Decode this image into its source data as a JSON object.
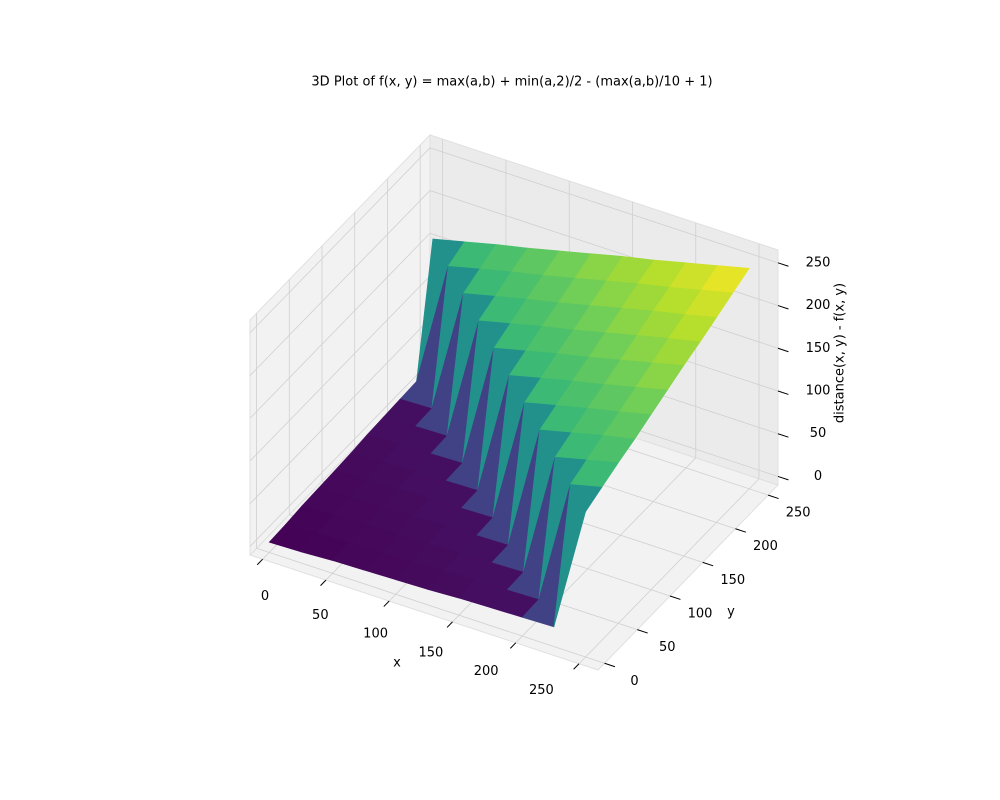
{
  "chart_data": {
    "type": "surface",
    "title": "3D Plot of f(x, y) = max(a,b) + min(a,2)/2 - (max(a,b)/10 + 1)",
    "xlabel": "x",
    "ylabel": "y",
    "zlabel": "distance(x, y) - f(x, y)",
    "x": [
      0,
      25,
      50,
      75,
      100,
      125,
      150,
      175,
      200,
      225,
      250
    ],
    "y": [
      0,
      25,
      50,
      75,
      100,
      125,
      150,
      175,
      200,
      225,
      250
    ],
    "z": [
      [
        2,
        3,
        5,
        6,
        7,
        8,
        10,
        11,
        12,
        13,
        160
      ],
      [
        3,
        5,
        6,
        7,
        8,
        10,
        11,
        12,
        13,
        160,
        169
      ],
      [
        5,
        6,
        7,
        8,
        10,
        11,
        12,
        13,
        160,
        169,
        178
      ],
      [
        6,
        7,
        8,
        10,
        11,
        12,
        13,
        160,
        169,
        178,
        186
      ],
      [
        7,
        8,
        10,
        11,
        12,
        13,
        160,
        169,
        178,
        186,
        195
      ],
      [
        8,
        10,
        11,
        12,
        13,
        160,
        169,
        178,
        186,
        195,
        204
      ],
      [
        10,
        11,
        12,
        13,
        160,
        169,
        178,
        186,
        195,
        204,
        213
      ],
      [
        11,
        12,
        13,
        160,
        169,
        178,
        186,
        195,
        204,
        213,
        221
      ],
      [
        12,
        13,
        160,
        169,
        178,
        186,
        195,
        204,
        213,
        221,
        230
      ],
      [
        13,
        160,
        169,
        178,
        186,
        195,
        204,
        213,
        221,
        230,
        239
      ],
      [
        160,
        169,
        178,
        186,
        195,
        204,
        213,
        221,
        230,
        239,
        248
      ]
    ],
    "cmap": "viridis",
    "xlim": [
      -10,
      265
    ],
    "ylim": [
      -10,
      265
    ],
    "zlim": [
      -10,
      265
    ],
    "xticks": [
      0,
      50,
      100,
      150,
      200,
      250
    ],
    "yticks": [
      0,
      50,
      100,
      150,
      200,
      250
    ],
    "zticks": [
      0,
      50,
      100,
      150,
      200,
      250
    ],
    "grid": true
  }
}
